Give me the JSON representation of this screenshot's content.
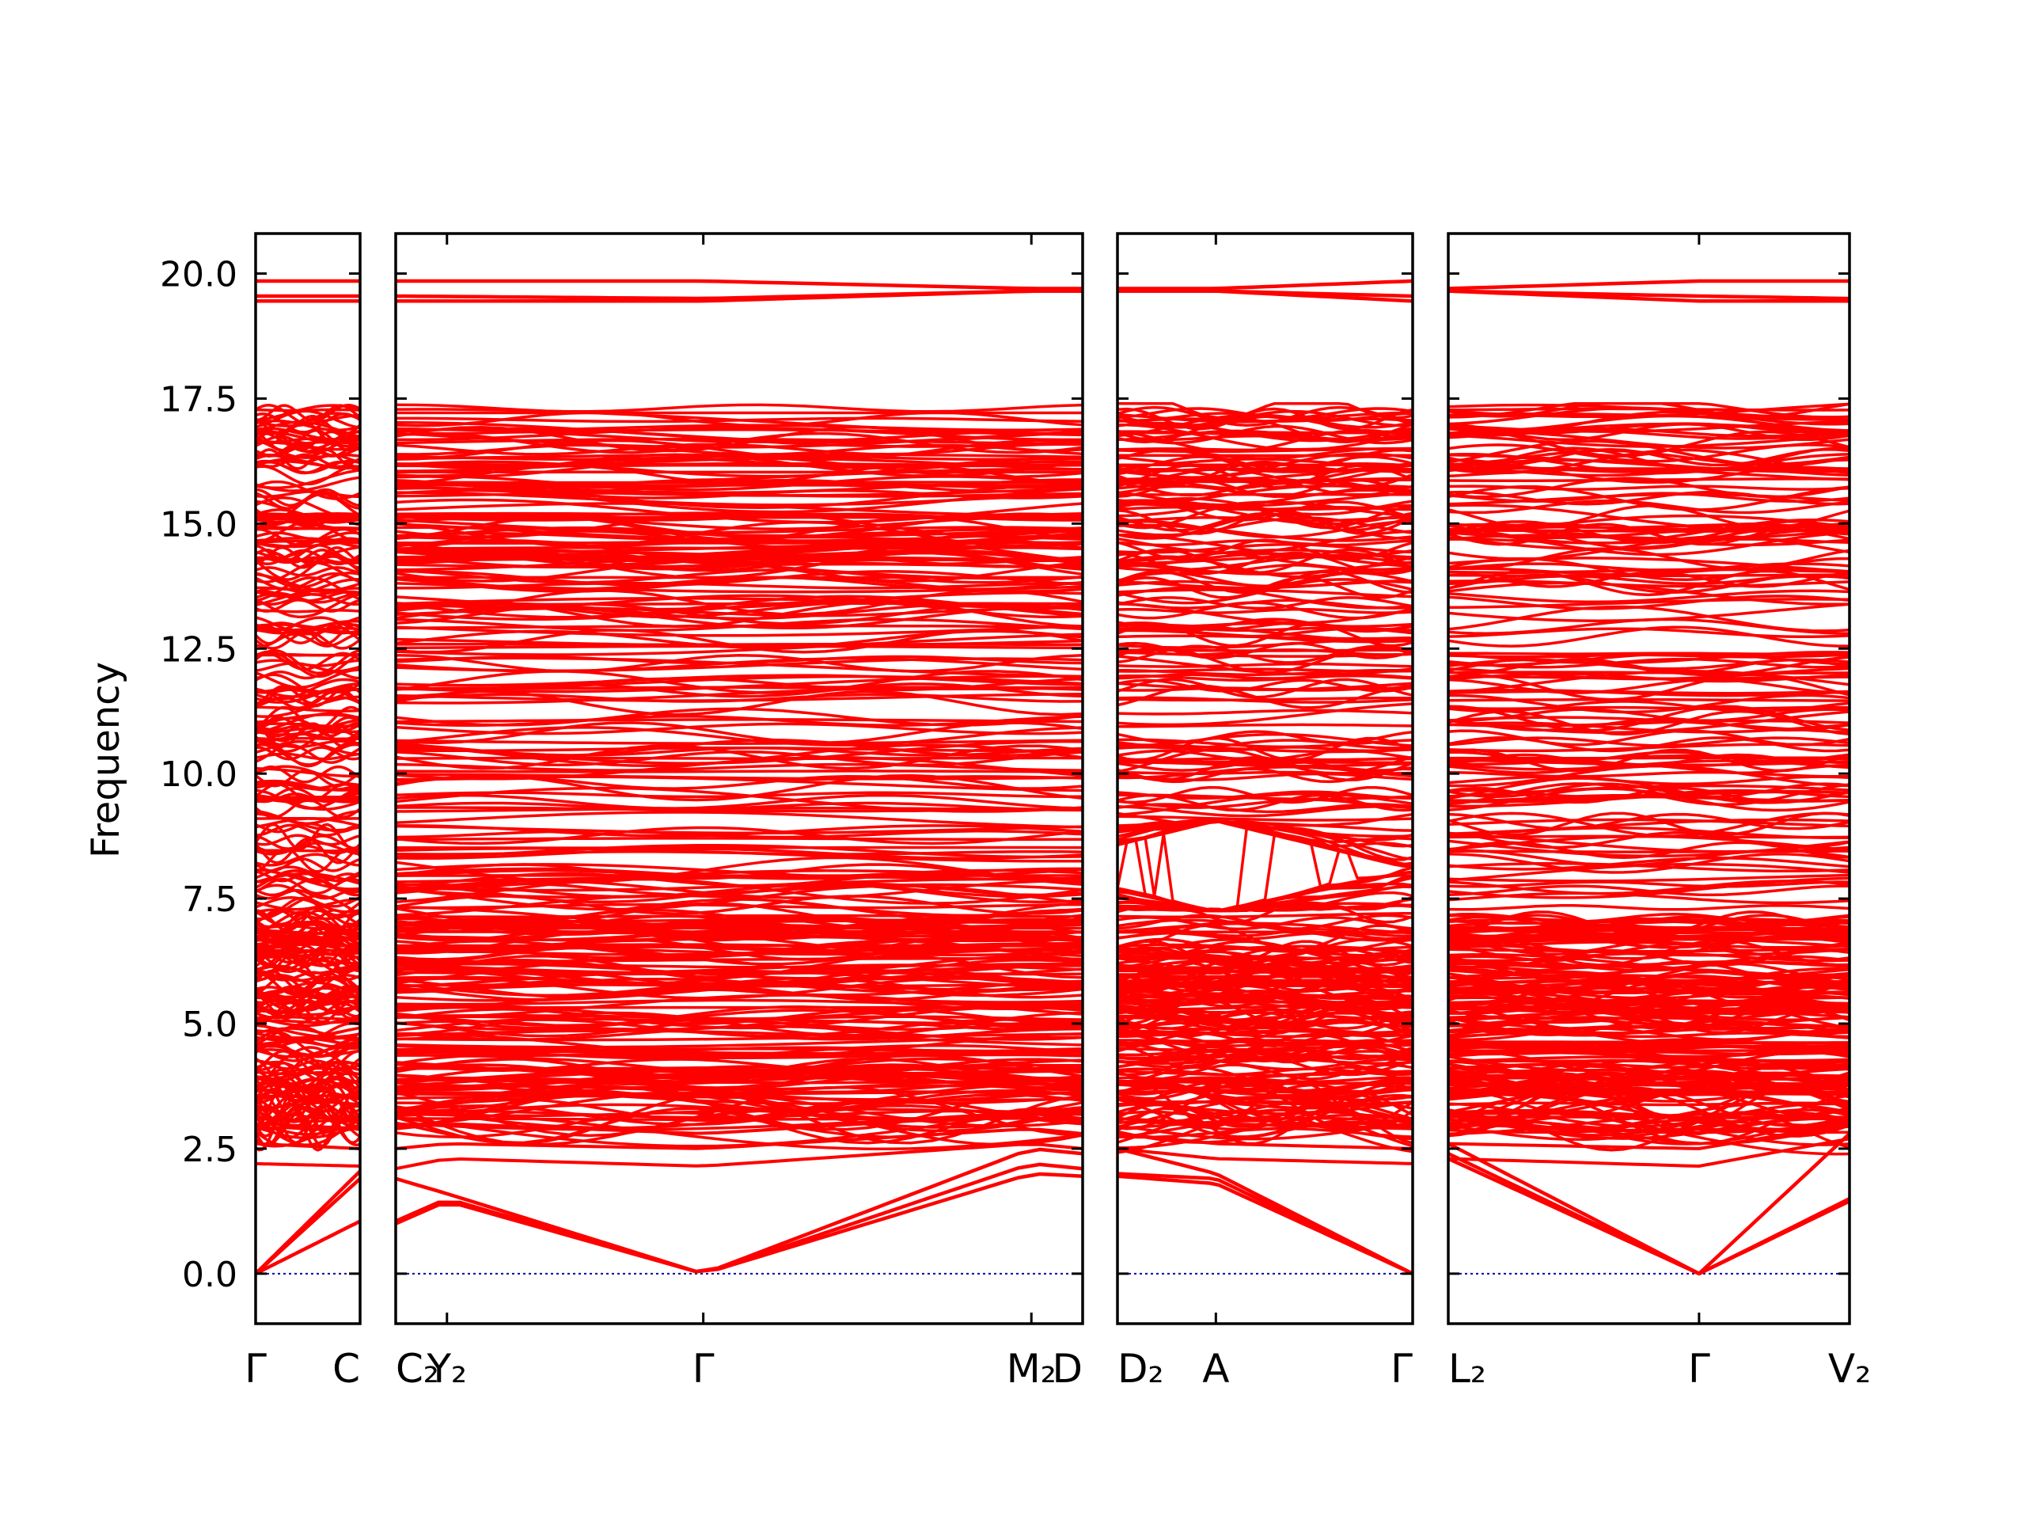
{
  "chart_data": {
    "type": "line",
    "title": "",
    "ylabel": "Frequency",
    "xlabel": "",
    "ylim": [
      -1.0,
      20.8
    ],
    "yticks": [
      0.0,
      2.5,
      5.0,
      7.5,
      10.0,
      12.5,
      15.0,
      17.5,
      20.0
    ],
    "ytick_labels": [
      "0.0",
      "2.5",
      "5.0",
      "7.5",
      "10.0",
      "12.5",
      "15.0",
      "17.5",
      "20.0"
    ],
    "band_color": "#ff0000",
    "zero_line_color": "#0000aa",
    "grid": false,
    "legend": "none",
    "high_band_group": [
      19.45,
      19.55,
      19.85
    ],
    "dense_band_range": [
      2.1,
      17.4
    ],
    "panels": [
      {
        "name": "panel-1",
        "x_range": [
          0,
          1
        ],
        "ticks": [
          {
            "x": 0,
            "label": "Γ"
          },
          {
            "x": 1,
            "label": "C"
          }
        ],
        "acoustic": [
          {
            "name": "acoustic-1",
            "x": [
              0,
              1
            ],
            "y": [
              0,
              1.05
            ]
          },
          {
            "name": "acoustic-2",
            "x": [
              0,
              1
            ],
            "y": [
              0,
              1.9
            ]
          },
          {
            "name": "acoustic-3",
            "x": [
              0,
              1
            ],
            "y": [
              0,
              2.05
            ]
          }
        ],
        "high": [
          {
            "name": "high-1",
            "x": [
              0,
              1
            ],
            "y": [
              19.85,
              19.85
            ]
          },
          {
            "name": "high-2",
            "x": [
              0,
              1
            ],
            "y": [
              19.55,
              19.55
            ]
          },
          {
            "name": "high-3",
            "x": [
              0,
              1
            ],
            "y": [
              19.45,
              19.45
            ]
          }
        ],
        "optical_base": [
          {
            "name": "opt-1",
            "x": [
              0,
              1
            ],
            "y": [
              2.2,
              2.15
            ]
          },
          {
            "name": "opt-2",
            "x": [
              0,
              1
            ],
            "y": [
              2.6,
              2.5
            ]
          },
          {
            "name": "opt-3",
            "x": [
              0,
              1
            ],
            "y": [
              3.0,
              2.9
            ]
          }
        ]
      },
      {
        "name": "panel-2",
        "x_range": [
          0,
          6.7
        ],
        "ticks": [
          {
            "x": 0,
            "label": "C₂"
          },
          {
            "x": 0.5,
            "label": "Y₂"
          },
          {
            "x": 3.0,
            "label": "Γ"
          },
          {
            "x": 6.2,
            "label": "M₂"
          },
          {
            "x": 6.7,
            "label": "D"
          }
        ],
        "acoustic": [
          {
            "name": "acoustic-1",
            "x": [
              0,
              0.5,
              3.0,
              6.2,
              6.7
            ],
            "y": [
              1.0,
              1.45,
              0,
              2.0,
              1.95
            ]
          },
          {
            "name": "acoustic-2",
            "x": [
              0,
              0.5,
              3.0,
              6.2,
              6.7
            ],
            "y": [
              1.05,
              1.5,
              0,
              2.2,
              2.1
            ]
          },
          {
            "name": "acoustic-3",
            "x": [
              0,
              0.5,
              3.0,
              6.2,
              6.7
            ],
            "y": [
              1.9,
              1.6,
              0,
              2.5,
              2.4
            ]
          }
        ],
        "high": [
          {
            "name": "high-1",
            "x": [
              0,
              3.0,
              6.2,
              6.7
            ],
            "y": [
              19.85,
              19.85,
              19.7,
              19.7
            ]
          },
          {
            "name": "high-2",
            "x": [
              0,
              3.0,
              6.2,
              6.7
            ],
            "y": [
              19.55,
              19.5,
              19.65,
              19.65
            ]
          },
          {
            "name": "high-3",
            "x": [
              0,
              3.0,
              6.2,
              6.7
            ],
            "y": [
              19.45,
              19.45,
              19.65,
              19.65
            ]
          }
        ],
        "optical_base": [
          {
            "name": "opt-1",
            "x": [
              0,
              0.5,
              3.0,
              6.2,
              6.7
            ],
            "y": [
              2.1,
              2.3,
              2.15,
              2.6,
              2.5
            ]
          },
          {
            "name": "opt-2",
            "x": [
              0,
              0.5,
              3.0,
              6.2,
              6.7
            ],
            "y": [
              2.5,
              2.6,
              2.5,
              2.9,
              2.8
            ]
          },
          {
            "name": "opt-3",
            "x": [
              0,
              0.5,
              3.0,
              6.2,
              6.7
            ],
            "y": [
              2.9,
              3.0,
              2.8,
              3.2,
              3.1
            ]
          }
        ]
      },
      {
        "name": "panel-3",
        "x_range": [
          0,
          3.0
        ],
        "ticks": [
          {
            "x": 0,
            "label": "D₂"
          },
          {
            "x": 1.0,
            "label": "A"
          },
          {
            "x": 3.0,
            "label": "Γ"
          }
        ],
        "acoustic": [
          {
            "name": "acoustic-1",
            "x": [
              0,
              1.0,
              3.0
            ],
            "y": [
              1.95,
              1.8,
              0
            ]
          },
          {
            "name": "acoustic-2",
            "x": [
              0,
              1.0,
              3.0
            ],
            "y": [
              2.0,
              1.9,
              0
            ]
          },
          {
            "name": "acoustic-3",
            "x": [
              0,
              1.0,
              3.0
            ],
            "y": [
              2.5,
              2.0,
              0
            ]
          }
        ],
        "high": [
          {
            "name": "high-1",
            "x": [
              0,
              1.0,
              3.0
            ],
            "y": [
              19.7,
              19.7,
              19.85
            ]
          },
          {
            "name": "high-2",
            "x": [
              0,
              1.0,
              3.0
            ],
            "y": [
              19.65,
              19.65,
              19.55
            ]
          },
          {
            "name": "high-3",
            "x": [
              0,
              1.0,
              3.0
            ],
            "y": [
              19.65,
              19.65,
              19.45
            ]
          }
        ],
        "optical_base": [
          {
            "name": "opt-1",
            "x": [
              0,
              1.0,
              3.0
            ],
            "y": [
              2.5,
              2.3,
              2.2
            ]
          },
          {
            "name": "opt-2",
            "x": [
              0,
              1.0,
              3.0
            ],
            "y": [
              2.8,
              2.6,
              2.5
            ]
          },
          {
            "name": "opt-3",
            "x": [
              0,
              1.0,
              3.0
            ],
            "y": [
              3.1,
              3.0,
              2.9
            ]
          }
        ],
        "annotation": {
          "gap_lower": 7.3,
          "gap_upper": 9.0,
          "at_x": 1.0
        }
      },
      {
        "name": "panel-4",
        "x_range": [
          0,
          4.0
        ],
        "ticks": [
          {
            "x": 0,
            "label": "L₂"
          },
          {
            "x": 2.5,
            "label": "Γ"
          },
          {
            "x": 4.0,
            "label": "V₂"
          }
        ],
        "acoustic": [
          {
            "name": "acoustic-1",
            "x": [
              0,
              2.5,
              4.0
            ],
            "y": [
              2.3,
              0,
              1.45
            ]
          },
          {
            "name": "acoustic-2",
            "x": [
              0,
              2.5,
              4.0
            ],
            "y": [
              2.4,
              0,
              1.5
            ]
          },
          {
            "name": "acoustic-3",
            "x": [
              0,
              2.5,
              4.0
            ],
            "y": [
              2.6,
              0,
              2.8
            ]
          }
        ],
        "high": [
          {
            "name": "high-1",
            "x": [
              0,
              2.5,
              4.0
            ],
            "y": [
              19.7,
              19.85,
              19.85
            ]
          },
          {
            "name": "high-2",
            "x": [
              0,
              2.5,
              4.0
            ],
            "y": [
              19.65,
              19.55,
              19.5
            ]
          },
          {
            "name": "high-3",
            "x": [
              0,
              2.5,
              4.0
            ],
            "y": [
              19.65,
              19.45,
              19.45
            ]
          }
        ],
        "optical_base": [
          {
            "name": "opt-1",
            "x": [
              0,
              2.5,
              4.0
            ],
            "y": [
              2.3,
              2.15,
              2.7
            ]
          },
          {
            "name": "opt-2",
            "x": [
              0,
              2.5,
              4.0
            ],
            "y": [
              2.6,
              2.5,
              3.0
            ]
          },
          {
            "name": "opt-3",
            "x": [
              0,
              2.5,
              4.0
            ],
            "y": [
              3.0,
              2.8,
              3.3
            ]
          }
        ]
      }
    ]
  }
}
